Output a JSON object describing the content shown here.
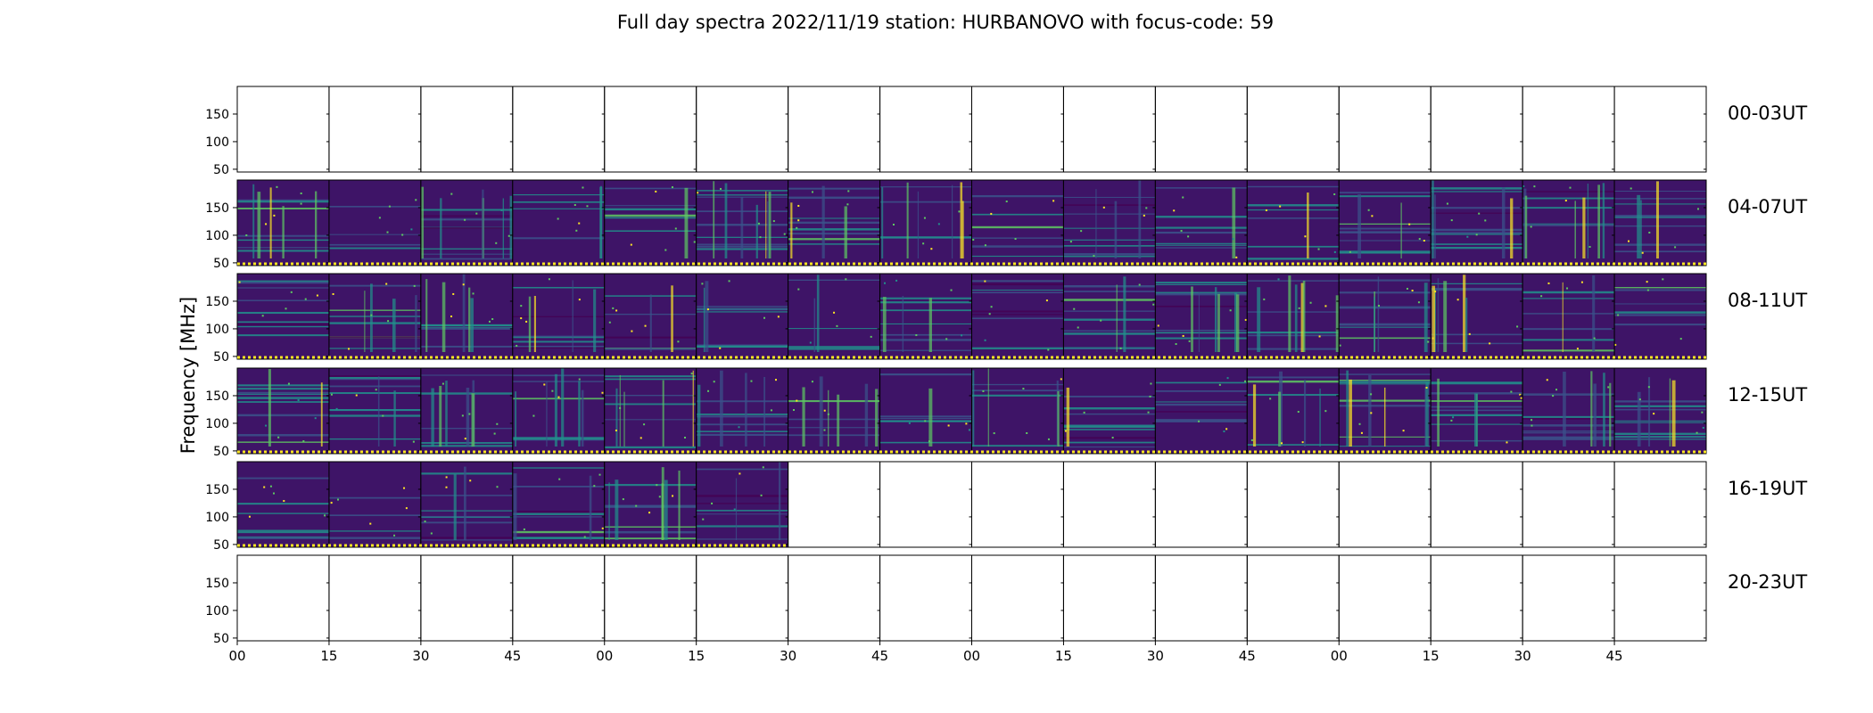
{
  "chart_data": {
    "type": "heatmap",
    "title": "Full day spectra 2022/11/19 station: HURBANOVO with focus-code: 59",
    "ylabel": "Frequency [MHz]",
    "xlabel": "",
    "ylim": [
      45,
      200
    ],
    "y_ticks": [
      "150",
      "100",
      "50"
    ],
    "x_ticks": [
      "00",
      "15",
      "30",
      "45",
      "00",
      "15",
      "30",
      "45",
      "00",
      "15",
      "30",
      "45",
      "00",
      "15",
      "30",
      "45"
    ],
    "rows": [
      {
        "label": "00-03UT",
        "filled_panels": 0,
        "has_marker_line": false
      },
      {
        "label": "04-07UT",
        "filled_panels": 16,
        "has_marker_line": true
      },
      {
        "label": "08-11UT",
        "filled_panels": 16,
        "has_marker_line": true
      },
      {
        "label": "12-15UT",
        "filled_panels": 16,
        "has_marker_line": true
      },
      {
        "label": "16-19UT",
        "filled_panels": 6,
        "has_marker_line": true
      },
      {
        "label": "20-23UT",
        "filled_panels": 0,
        "has_marker_line": false
      }
    ],
    "panels_per_row": 16,
    "colormap": [
      "#440154",
      "#3b528b",
      "#21918c",
      "#5ec962",
      "#fde725"
    ],
    "background_color": "#3e1467",
    "marker_color": "#fde725"
  }
}
